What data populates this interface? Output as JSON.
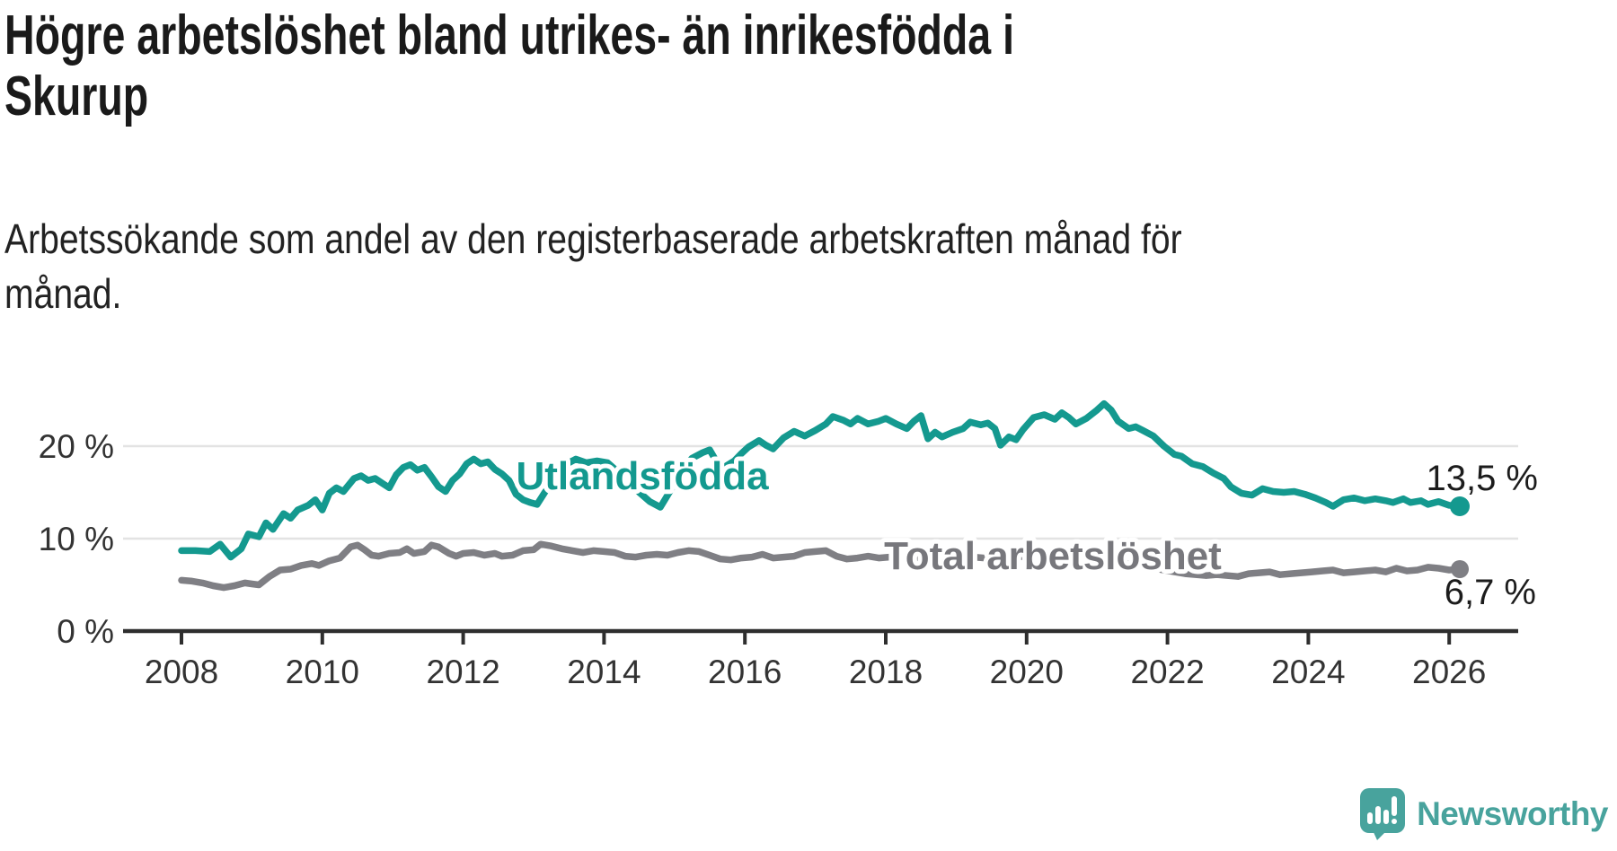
{
  "header": {
    "title": "Högre arbetslöshet bland utrikes- än inrikesfödda i\nSkurup",
    "subtitle": "Arbetssökande som andel av den registerbaserade arbetskraften månad för\nmånad."
  },
  "chart_data": {
    "type": "line",
    "title": "Högre arbetslöshet bland utrikes- än inrikesfödda i Skurup",
    "subtitle": "Arbetssökande som andel av den registerbaserade arbetskraften månad för månad.",
    "grid": "horizontal",
    "legend_position": "inline-labels",
    "x_axis": {
      "min": 2008,
      "max": 2026.2,
      "ticks": [
        "2008",
        "2010",
        "2012",
        "2014",
        "2016",
        "2018",
        "2020",
        "2022",
        "2024",
        "2026"
      ]
    },
    "y_axis": {
      "min": 0,
      "max": 26,
      "unit": "%",
      "ticks": [
        {
          "value": 0,
          "label": "0 %"
        },
        {
          "value": 10,
          "label": "10 %"
        },
        {
          "value": 20,
          "label": "20 %"
        }
      ]
    },
    "series": [
      {
        "name": "Utlandsfödda",
        "color": "#14998f",
        "label_color": "#13998f",
        "end_value": 13.5,
        "end_label": "13,5 %",
        "points": [
          [
            2008.0,
            8.7
          ],
          [
            2008.2,
            8.7
          ],
          [
            2008.4,
            8.6
          ],
          [
            2008.55,
            9.4
          ],
          [
            2008.7,
            8.0
          ],
          [
            2008.85,
            8.9
          ],
          [
            2008.95,
            10.5
          ],
          [
            2009.1,
            10.2
          ],
          [
            2009.2,
            11.7
          ],
          [
            2009.3,
            11.0
          ],
          [
            2009.45,
            12.7
          ],
          [
            2009.55,
            12.2
          ],
          [
            2009.65,
            13.1
          ],
          [
            2009.8,
            13.6
          ],
          [
            2009.9,
            14.2
          ],
          [
            2010.0,
            13.1
          ],
          [
            2010.1,
            14.9
          ],
          [
            2010.2,
            15.5
          ],
          [
            2010.3,
            15.1
          ],
          [
            2010.45,
            16.5
          ],
          [
            2010.55,
            16.8
          ],
          [
            2010.65,
            16.3
          ],
          [
            2010.75,
            16.5
          ],
          [
            2010.85,
            16.0
          ],
          [
            2010.95,
            15.5
          ],
          [
            2011.05,
            16.9
          ],
          [
            2011.15,
            17.7
          ],
          [
            2011.25,
            18.0
          ],
          [
            2011.35,
            17.4
          ],
          [
            2011.45,
            17.7
          ],
          [
            2011.55,
            16.7
          ],
          [
            2011.65,
            15.6
          ],
          [
            2011.75,
            15.1
          ],
          [
            2011.85,
            16.3
          ],
          [
            2011.95,
            17.0
          ],
          [
            2012.05,
            18.1
          ],
          [
            2012.15,
            18.6
          ],
          [
            2012.25,
            18.1
          ],
          [
            2012.35,
            18.3
          ],
          [
            2012.45,
            17.5
          ],
          [
            2012.55,
            17.0
          ],
          [
            2012.65,
            16.3
          ],
          [
            2012.75,
            14.8
          ],
          [
            2012.85,
            14.2
          ],
          [
            2012.95,
            13.9
          ],
          [
            2013.05,
            13.7
          ],
          [
            2013.15,
            14.9
          ],
          [
            2013.3,
            16.7
          ],
          [
            2013.45,
            18.0
          ],
          [
            2013.6,
            18.6
          ],
          [
            2013.75,
            18.2
          ],
          [
            2013.9,
            18.4
          ],
          [
            2014.05,
            18.2
          ],
          [
            2014.2,
            17.2
          ],
          [
            2014.35,
            16.1
          ],
          [
            2014.5,
            15.0
          ],
          [
            2014.65,
            14.0
          ],
          [
            2014.8,
            13.4
          ],
          [
            2014.95,
            15.3
          ],
          [
            2015.1,
            17.3
          ],
          [
            2015.25,
            18.7
          ],
          [
            2015.4,
            19.3
          ],
          [
            2015.5,
            19.6
          ],
          [
            2015.6,
            18.3
          ],
          [
            2015.7,
            17.7
          ],
          [
            2015.85,
            18.4
          ],
          [
            2015.95,
            19.2
          ],
          [
            2016.05,
            19.9
          ],
          [
            2016.2,
            20.6
          ],
          [
            2016.3,
            20.1
          ],
          [
            2016.4,
            19.7
          ],
          [
            2016.55,
            20.9
          ],
          [
            2016.7,
            21.6
          ],
          [
            2016.85,
            21.1
          ],
          [
            2017.0,
            21.7
          ],
          [
            2017.15,
            22.4
          ],
          [
            2017.25,
            23.2
          ],
          [
            2017.4,
            22.8
          ],
          [
            2017.5,
            22.4
          ],
          [
            2017.6,
            23.0
          ],
          [
            2017.75,
            22.4
          ],
          [
            2017.9,
            22.7
          ],
          [
            2018.0,
            23.0
          ],
          [
            2018.15,
            22.4
          ],
          [
            2018.3,
            21.9
          ],
          [
            2018.4,
            22.7
          ],
          [
            2018.5,
            23.3
          ],
          [
            2018.6,
            20.8
          ],
          [
            2018.7,
            21.5
          ],
          [
            2018.8,
            21.0
          ],
          [
            2018.95,
            21.5
          ],
          [
            2019.1,
            21.9
          ],
          [
            2019.2,
            22.6
          ],
          [
            2019.35,
            22.3
          ],
          [
            2019.45,
            22.5
          ],
          [
            2019.55,
            21.9
          ],
          [
            2019.63,
            20.1
          ],
          [
            2019.75,
            21.0
          ],
          [
            2019.85,
            20.7
          ],
          [
            2019.95,
            21.8
          ],
          [
            2020.1,
            23.1
          ],
          [
            2020.25,
            23.4
          ],
          [
            2020.4,
            22.9
          ],
          [
            2020.5,
            23.6
          ],
          [
            2020.6,
            23.1
          ],
          [
            2020.7,
            22.4
          ],
          [
            2020.85,
            23.0
          ],
          [
            2021.0,
            23.9
          ],
          [
            2021.1,
            24.6
          ],
          [
            2021.2,
            23.9
          ],
          [
            2021.3,
            22.7
          ],
          [
            2021.45,
            21.9
          ],
          [
            2021.55,
            22.1
          ],
          [
            2021.65,
            21.7
          ],
          [
            2021.8,
            21.1
          ],
          [
            2021.95,
            20.0
          ],
          [
            2022.1,
            19.1
          ],
          [
            2022.2,
            18.9
          ],
          [
            2022.35,
            18.1
          ],
          [
            2022.5,
            17.8
          ],
          [
            2022.65,
            17.1
          ],
          [
            2022.8,
            16.5
          ],
          [
            2022.9,
            15.6
          ],
          [
            2023.05,
            14.9
          ],
          [
            2023.2,
            14.7
          ],
          [
            2023.35,
            15.4
          ],
          [
            2023.5,
            15.1
          ],
          [
            2023.65,
            15.0
          ],
          [
            2023.8,
            15.1
          ],
          [
            2023.95,
            14.8
          ],
          [
            2024.1,
            14.4
          ],
          [
            2024.25,
            13.9
          ],
          [
            2024.35,
            13.5
          ],
          [
            2024.5,
            14.2
          ],
          [
            2024.65,
            14.4
          ],
          [
            2024.8,
            14.1
          ],
          [
            2024.95,
            14.3
          ],
          [
            2025.1,
            14.1
          ],
          [
            2025.2,
            13.9
          ],
          [
            2025.35,
            14.3
          ],
          [
            2025.45,
            13.9
          ],
          [
            2025.6,
            14.1
          ],
          [
            2025.7,
            13.7
          ],
          [
            2025.85,
            14.0
          ],
          [
            2026.0,
            13.6
          ],
          [
            2026.15,
            13.5
          ]
        ]
      },
      {
        "name": "Total arbetslöshet",
        "color": "#7f7f84",
        "label_color": "#77777c",
        "end_value": 6.7,
        "end_label": "6,7 %",
        "points": [
          [
            2008.0,
            5.5
          ],
          [
            2008.15,
            5.4
          ],
          [
            2008.3,
            5.2
          ],
          [
            2008.45,
            4.9
          ],
          [
            2008.6,
            4.7
          ],
          [
            2008.75,
            4.9
          ],
          [
            2008.9,
            5.2
          ],
          [
            2009.0,
            5.1
          ],
          [
            2009.1,
            5.0
          ],
          [
            2009.25,
            5.9
          ],
          [
            2009.4,
            6.6
          ],
          [
            2009.55,
            6.7
          ],
          [
            2009.7,
            7.1
          ],
          [
            2009.85,
            7.3
          ],
          [
            2009.95,
            7.1
          ],
          [
            2010.1,
            7.6
          ],
          [
            2010.25,
            7.9
          ],
          [
            2010.4,
            9.1
          ],
          [
            2010.5,
            9.3
          ],
          [
            2010.6,
            8.8
          ],
          [
            2010.7,
            8.2
          ],
          [
            2010.8,
            8.1
          ],
          [
            2010.95,
            8.4
          ],
          [
            2011.1,
            8.5
          ],
          [
            2011.2,
            8.9
          ],
          [
            2011.3,
            8.4
          ],
          [
            2011.45,
            8.6
          ],
          [
            2011.55,
            9.3
          ],
          [
            2011.65,
            9.1
          ],
          [
            2011.8,
            8.4
          ],
          [
            2011.9,
            8.1
          ],
          [
            2012.0,
            8.4
          ],
          [
            2012.15,
            8.5
          ],
          [
            2012.3,
            8.2
          ],
          [
            2012.45,
            8.4
          ],
          [
            2012.55,
            8.1
          ],
          [
            2012.7,
            8.2
          ],
          [
            2012.85,
            8.7
          ],
          [
            2013.0,
            8.8
          ],
          [
            2013.1,
            9.4
          ],
          [
            2013.25,
            9.2
          ],
          [
            2013.4,
            8.9
          ],
          [
            2013.55,
            8.7
          ],
          [
            2013.7,
            8.5
          ],
          [
            2013.85,
            8.7
          ],
          [
            2014.0,
            8.6
          ],
          [
            2014.15,
            8.5
          ],
          [
            2014.3,
            8.1
          ],
          [
            2014.45,
            8.0
          ],
          [
            2014.6,
            8.2
          ],
          [
            2014.75,
            8.3
          ],
          [
            2014.9,
            8.2
          ],
          [
            2015.05,
            8.5
          ],
          [
            2015.2,
            8.7
          ],
          [
            2015.35,
            8.6
          ],
          [
            2015.5,
            8.2
          ],
          [
            2015.65,
            7.8
          ],
          [
            2015.8,
            7.7
          ],
          [
            2015.95,
            7.9
          ],
          [
            2016.1,
            8.0
          ],
          [
            2016.25,
            8.3
          ],
          [
            2016.4,
            7.9
          ],
          [
            2016.55,
            8.0
          ],
          [
            2016.7,
            8.1
          ],
          [
            2016.85,
            8.5
          ],
          [
            2017.0,
            8.6
          ],
          [
            2017.15,
            8.7
          ],
          [
            2017.3,
            8.1
          ],
          [
            2017.45,
            7.8
          ],
          [
            2017.6,
            7.9
          ],
          [
            2017.75,
            8.1
          ],
          [
            2017.9,
            7.9
          ],
          [
            2018.05,
            8.0
          ],
          [
            2018.2,
            7.8
          ],
          [
            2018.35,
            7.9
          ],
          [
            2018.5,
            7.7
          ],
          [
            2018.65,
            7.8
          ],
          [
            2018.8,
            7.9
          ],
          [
            2018.95,
            7.8
          ],
          [
            2019.1,
            7.9
          ],
          [
            2019.25,
            8.0
          ],
          [
            2019.4,
            7.9
          ],
          [
            2019.55,
            8.0
          ],
          [
            2019.7,
            8.1
          ],
          [
            2019.85,
            8.0
          ],
          [
            2020.0,
            8.1
          ],
          [
            2020.15,
            8.3
          ],
          [
            2020.3,
            8.4
          ],
          [
            2020.45,
            8.3
          ],
          [
            2020.6,
            8.2
          ],
          [
            2020.75,
            8.1
          ],
          [
            2020.9,
            8.0
          ],
          [
            2021.05,
            7.9
          ],
          [
            2021.2,
            7.7
          ],
          [
            2021.35,
            7.4
          ],
          [
            2021.5,
            7.2
          ],
          [
            2021.65,
            7.0
          ],
          [
            2021.8,
            6.8
          ],
          [
            2021.95,
            6.6
          ],
          [
            2022.1,
            6.4
          ],
          [
            2022.25,
            6.2
          ],
          [
            2022.4,
            6.1
          ],
          [
            2022.55,
            6.0
          ],
          [
            2022.7,
            6.1
          ],
          [
            2022.85,
            6.0
          ],
          [
            2023.0,
            5.9
          ],
          [
            2023.15,
            6.2
          ],
          [
            2023.3,
            6.3
          ],
          [
            2023.45,
            6.4
          ],
          [
            2023.6,
            6.1
          ],
          [
            2023.75,
            6.2
          ],
          [
            2023.9,
            6.3
          ],
          [
            2024.05,
            6.4
          ],
          [
            2024.2,
            6.5
          ],
          [
            2024.35,
            6.6
          ],
          [
            2024.5,
            6.3
          ],
          [
            2024.65,
            6.4
          ],
          [
            2024.8,
            6.5
          ],
          [
            2024.95,
            6.6
          ],
          [
            2025.1,
            6.4
          ],
          [
            2025.25,
            6.8
          ],
          [
            2025.4,
            6.5
          ],
          [
            2025.55,
            6.6
          ],
          [
            2025.7,
            6.9
          ],
          [
            2025.85,
            6.8
          ],
          [
            2026.0,
            6.6
          ],
          [
            2026.15,
            6.7
          ]
        ]
      }
    ]
  },
  "branding": {
    "name": "Newsworthy",
    "color": "#48a39d"
  }
}
